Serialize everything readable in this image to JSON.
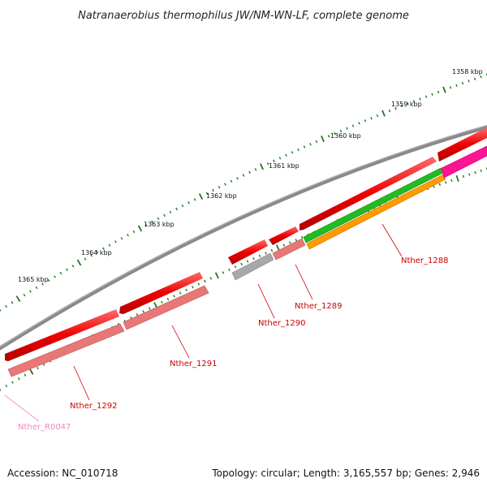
{
  "title": "Natranaerobius thermophilus JW/NM-WN-LF, complete genome",
  "footer": {
    "accession": "Accession: NC_010718",
    "summary": "Topology: circular; Length: 3,165,557 bp; Genes: 2,946"
  },
  "colors": {
    "backbone": "#7a7a7a",
    "cds": "#ee0000",
    "cds_light": "#ff5a5a",
    "gene": "#e87878",
    "gene_grey": "#a8a8a8",
    "green": "#22bb22",
    "orange": "#ff9a00",
    "magenta": "#ff1493",
    "tick": "#1a7a1a",
    "label_red": "#cc0000",
    "label_pink": "#ee88bb"
  },
  "scale": {
    "labels": [
      "1358 kbp",
      "1359 kbp",
      "1360 kbp",
      "1361 kbp",
      "1362 kbp",
      "1363 kbp",
      "1364 kbp",
      "1365 kbp"
    ]
  },
  "genes": [
    {
      "name": "Nther_1288"
    },
    {
      "name": "Nther_1289"
    },
    {
      "name": "Nther_1290"
    },
    {
      "name": "Nther_1291"
    },
    {
      "name": "Nther_1292"
    },
    {
      "name": "Nther_R0047"
    }
  ]
}
